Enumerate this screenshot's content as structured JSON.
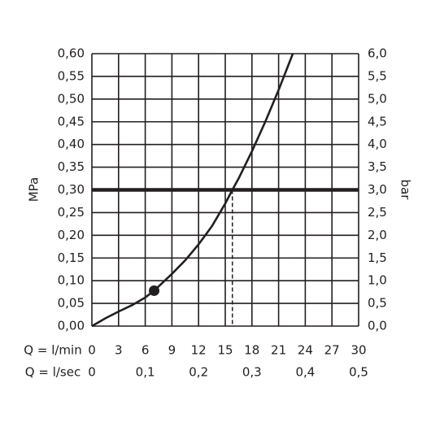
{
  "chart_data": {
    "type": "line",
    "ylabel": "MPa",
    "y2label": "bar",
    "xlabel": "Q = l/min",
    "x2label": "Q = l/sec",
    "xlim": [
      0,
      30
    ],
    "xticks": [
      0,
      3,
      6,
      9,
      12,
      15,
      18,
      21,
      24,
      27,
      30
    ],
    "x2lim": [
      0,
      0.5
    ],
    "x2ticks": [
      0,
      {
        "value": 0.1,
        "label": "0,1"
      },
      {
        "value": 0.2,
        "label": "0,2"
      },
      {
        "value": 0.3,
        "label": "0,3"
      },
      {
        "value": 0.4,
        "label": "0,4"
      },
      {
        "value": 0.5,
        "label": "0,5"
      }
    ],
    "ylim": [
      0,
      0.6
    ],
    "yticks": [
      {
        "value": 0,
        "label": "0,00"
      },
      {
        "value": 0.05,
        "label": "0,05"
      },
      {
        "value": 0.1,
        "label": "0,10"
      },
      {
        "value": 0.15,
        "label": "0,15"
      },
      {
        "value": 0.2,
        "label": "0,20"
      },
      {
        "value": 0.25,
        "label": "0,25"
      },
      {
        "value": 0.3,
        "label": "0,30"
      },
      {
        "value": 0.35,
        "label": "0,35"
      },
      {
        "value": 0.4,
        "label": "0,40"
      },
      {
        "value": 0.45,
        "label": "0,45"
      },
      {
        "value": 0.5,
        "label": "0,50"
      },
      {
        "value": 0.55,
        "label": "0,55"
      },
      {
        "value": 0.6,
        "label": "0,60"
      }
    ],
    "y2lim": [
      0,
      6
    ],
    "y2ticks": [
      {
        "value": 0,
        "label": "0,0"
      },
      {
        "value": 0.5,
        "label": "0,5"
      },
      {
        "value": 1,
        "label": "1,0"
      },
      {
        "value": 1.5,
        "label": "1,5"
      },
      {
        "value": 2,
        "label": "2,0"
      },
      {
        "value": 2.5,
        "label": "2,5"
      },
      {
        "value": 3,
        "label": "3,0"
      },
      {
        "value": 3.5,
        "label": "3,5"
      },
      {
        "value": 4,
        "label": "4,0"
      },
      {
        "value": 4.5,
        "label": "4,5"
      },
      {
        "value": 5,
        "label": "5,0"
      },
      {
        "value": 5.5,
        "label": "5,5"
      },
      {
        "value": 6,
        "label": "6,0"
      }
    ],
    "grid": true,
    "x": [
      0,
      1.5,
      3,
      4.5,
      6,
      7,
      9,
      10.5,
      12,
      13.5,
      15,
      15.8,
      16.5,
      18,
      19.5,
      21,
      22.6
    ],
    "series": [
      {
        "color": "#231f20",
        "values": [
          0,
          0.017,
          0.032,
          0.046,
          0.063,
          0.078,
          0.115,
          0.145,
          0.18,
          0.22,
          0.27,
          0.3,
          0.325,
          0.385,
          0.45,
          0.52,
          0.6
        ]
      }
    ],
    "marker": {
      "x": 7,
      "y": 0.078
    },
    "hline": 0.3,
    "dashed_x": 15.8
  }
}
